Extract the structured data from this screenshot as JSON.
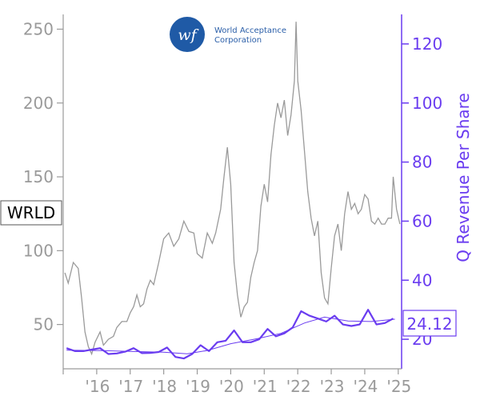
{
  "logo": {
    "monogram": "wf",
    "line1": "World Acceptance",
    "line2": "Corporation"
  },
  "ticker": "WRLD",
  "last_value_label": "24.12",
  "colors": {
    "price_line": "#9a9a9a",
    "revenue_line": "#6a3cf0",
    "trend_line": "#6a3cf0",
    "left_axis": "#9a9a9a",
    "right_axis": "#6a3cf0",
    "logo_circle": "#1f5aa6"
  },
  "chart_data": {
    "type": "line",
    "ylabel_right": "Q Revenue Per Share",
    "x_tick_labels": [
      "'16",
      "'17",
      "'18",
      "'19",
      "'20",
      "'21",
      "'22",
      "'23",
      "'24",
      "'25"
    ],
    "y_left_ticks": [
      50,
      100,
      150,
      200,
      250
    ],
    "y_right_ticks": [
      20,
      40,
      60,
      80,
      100,
      120
    ],
    "ylim_left": [
      20,
      260
    ],
    "ylim_right": [
      10,
      130
    ],
    "xlim": [
      2015.0,
      2025.1
    ],
    "series": [
      {
        "axis": "left",
        "points": [
          [
            2015.05,
            85
          ],
          [
            2015.15,
            78
          ],
          [
            2015.3,
            92
          ],
          [
            2015.45,
            88
          ],
          [
            2015.55,
            68
          ],
          [
            2015.65,
            45
          ],
          [
            2015.75,
            35
          ],
          [
            2015.85,
            30
          ],
          [
            2015.95,
            38
          ],
          [
            2016.1,
            45
          ],
          [
            2016.2,
            36
          ],
          [
            2016.35,
            40
          ],
          [
            2016.5,
            42
          ],
          [
            2016.6,
            48
          ],
          [
            2016.75,
            52
          ],
          [
            2016.9,
            52
          ],
          [
            2017.0,
            58
          ],
          [
            2017.1,
            62
          ],
          [
            2017.2,
            70
          ],
          [
            2017.3,
            62
          ],
          [
            2017.4,
            64
          ],
          [
            2017.5,
            74
          ],
          [
            2017.6,
            80
          ],
          [
            2017.7,
            77
          ],
          [
            2017.85,
            92
          ],
          [
            2018.0,
            108
          ],
          [
            2018.15,
            112
          ],
          [
            2018.3,
            103
          ],
          [
            2018.45,
            108
          ],
          [
            2018.6,
            120
          ],
          [
            2018.75,
            113
          ],
          [
            2018.9,
            112
          ],
          [
            2019.0,
            98
          ],
          [
            2019.15,
            95
          ],
          [
            2019.3,
            112
          ],
          [
            2019.45,
            105
          ],
          [
            2019.55,
            112
          ],
          [
            2019.7,
            128
          ],
          [
            2019.8,
            150
          ],
          [
            2019.9,
            170
          ],
          [
            2020.0,
            145
          ],
          [
            2020.1,
            92
          ],
          [
            2020.2,
            70
          ],
          [
            2020.3,
            55
          ],
          [
            2020.4,
            62
          ],
          [
            2020.5,
            65
          ],
          [
            2020.6,
            82
          ],
          [
            2020.7,
            92
          ],
          [
            2020.8,
            100
          ],
          [
            2020.9,
            130
          ],
          [
            2021.0,
            145
          ],
          [
            2021.1,
            133
          ],
          [
            2021.2,
            165
          ],
          [
            2021.3,
            185
          ],
          [
            2021.4,
            200
          ],
          [
            2021.5,
            190
          ],
          [
            2021.6,
            202
          ],
          [
            2021.7,
            178
          ],
          [
            2021.8,
            192
          ],
          [
            2021.9,
            215
          ],
          [
            2021.95,
            255
          ],
          [
            2022.0,
            215
          ],
          [
            2022.1,
            195
          ],
          [
            2022.2,
            168
          ],
          [
            2022.3,
            140
          ],
          [
            2022.4,
            122
          ],
          [
            2022.5,
            110
          ],
          [
            2022.6,
            120
          ],
          [
            2022.7,
            85
          ],
          [
            2022.8,
            68
          ],
          [
            2022.9,
            64
          ],
          [
            2023.0,
            88
          ],
          [
            2023.1,
            110
          ],
          [
            2023.2,
            118
          ],
          [
            2023.3,
            100
          ],
          [
            2023.4,
            125
          ],
          [
            2023.5,
            140
          ],
          [
            2023.6,
            128
          ],
          [
            2023.7,
            132
          ],
          [
            2023.8,
            125
          ],
          [
            2023.9,
            128
          ],
          [
            2024.0,
            138
          ],
          [
            2024.1,
            135
          ],
          [
            2024.2,
            120
          ],
          [
            2024.3,
            118
          ],
          [
            2024.4,
            122
          ],
          [
            2024.5,
            118
          ],
          [
            2024.6,
            118
          ],
          [
            2024.7,
            122
          ],
          [
            2024.8,
            122
          ],
          [
            2024.85,
            150
          ],
          [
            2024.95,
            128
          ],
          [
            2025.05,
            118
          ]
        ]
      },
      {
        "axis": "right",
        "points": [
          [
            2015.1,
            17
          ],
          [
            2015.35,
            16
          ],
          [
            2015.6,
            16
          ],
          [
            2015.85,
            16.5
          ],
          [
            2016.1,
            17
          ],
          [
            2016.35,
            15
          ],
          [
            2016.6,
            15.2
          ],
          [
            2016.85,
            15.8
          ],
          [
            2017.1,
            17
          ],
          [
            2017.35,
            15.3
          ],
          [
            2017.6,
            15.4
          ],
          [
            2017.85,
            15.7
          ],
          [
            2018.1,
            17.2
          ],
          [
            2018.35,
            14
          ],
          [
            2018.6,
            13.5
          ],
          [
            2018.85,
            15
          ],
          [
            2019.1,
            18
          ],
          [
            2019.35,
            16
          ],
          [
            2019.6,
            19
          ],
          [
            2019.85,
            19.5
          ],
          [
            2020.1,
            23
          ],
          [
            2020.35,
            19
          ],
          [
            2020.6,
            19
          ],
          [
            2020.85,
            20
          ],
          [
            2021.1,
            23.5
          ],
          [
            2021.35,
            21
          ],
          [
            2021.6,
            22
          ],
          [
            2021.85,
            24
          ],
          [
            2022.1,
            29.5
          ],
          [
            2022.35,
            28
          ],
          [
            2022.6,
            27
          ],
          [
            2022.85,
            26
          ],
          [
            2023.1,
            28
          ],
          [
            2023.35,
            25
          ],
          [
            2023.6,
            24.5
          ],
          [
            2023.85,
            25
          ],
          [
            2024.1,
            30
          ],
          [
            2024.35,
            25
          ],
          [
            2024.6,
            25.5
          ],
          [
            2024.85,
            27
          ]
        ]
      },
      {
        "axis": "right",
        "points": [
          [
            2015.1,
            16.3
          ],
          [
            2016.0,
            16.2
          ],
          [
            2017.0,
            15.9
          ],
          [
            2018.0,
            15.6
          ],
          [
            2018.7,
            15.1
          ],
          [
            2019.3,
            16.2
          ],
          [
            2020.0,
            18.5
          ],
          [
            2020.8,
            20.2
          ],
          [
            2021.5,
            22.0
          ],
          [
            2022.2,
            25.5
          ],
          [
            2022.8,
            27.5
          ],
          [
            2023.5,
            26.2
          ],
          [
            2024.2,
            26.0
          ],
          [
            2024.9,
            26.8
          ]
        ]
      }
    ]
  }
}
